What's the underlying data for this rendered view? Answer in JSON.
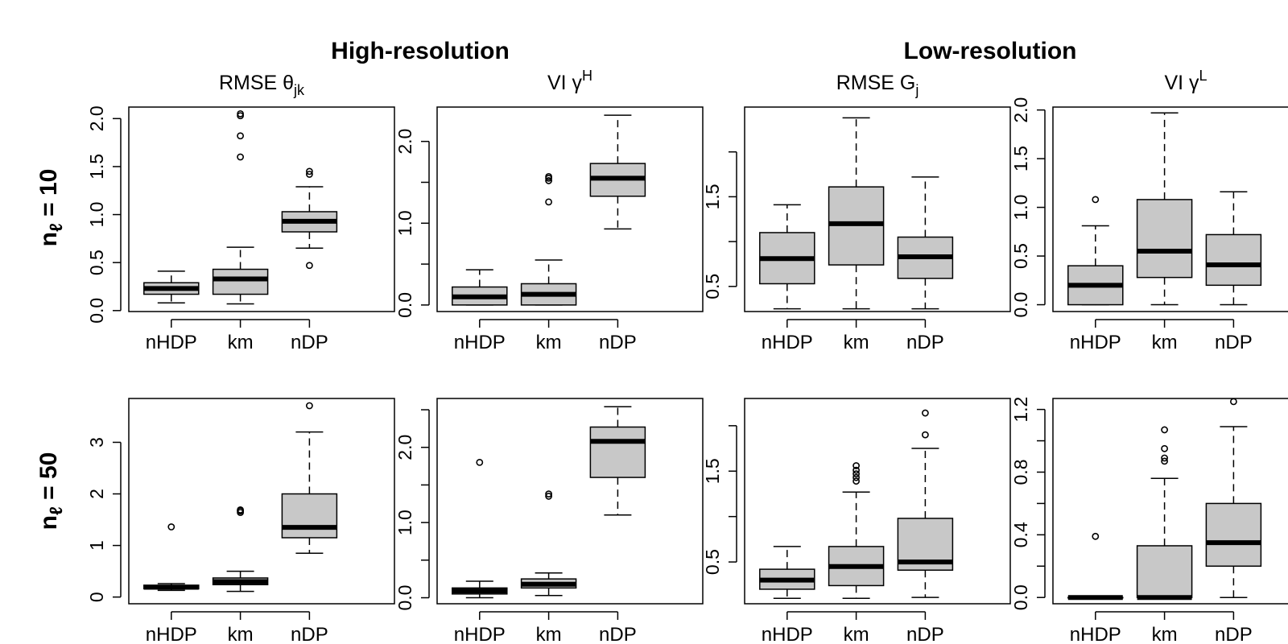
{
  "titles": {
    "group_left": "High-resolution",
    "group_right": "Low-resolution"
  },
  "rows": [
    {
      "label_main": "n",
      "label_sub": "ℓ",
      "label_rest": " = 10"
    },
    {
      "label_main": "n",
      "label_sub": "ℓ",
      "label_rest": " = 50"
    }
  ],
  "chart_data": [
    {
      "type": "box",
      "title_main": "RMSE θ",
      "title_sup": "",
      "title_sub": "jk",
      "categories": [
        "nHDP",
        "km",
        "nDP"
      ],
      "ylim": [
        -0.01,
        2.12
      ],
      "yticks": [
        0.0,
        0.5,
        1.0,
        1.5,
        2.0
      ],
      "ytick_labels": [
        "0.0",
        "0.5",
        "1.0",
        "1.5",
        "2.0"
      ],
      "boxes": [
        {
          "min": 0.08,
          "q1": 0.17,
          "median": 0.23,
          "q3": 0.29,
          "max": 0.41,
          "outliers": []
        },
        {
          "min": 0.07,
          "q1": 0.17,
          "median": 0.33,
          "q3": 0.43,
          "max": 0.66,
          "outliers": [
            1.6,
            1.82,
            2.03,
            2.05
          ]
        },
        {
          "min": 0.65,
          "q1": 0.82,
          "median": 0.93,
          "q3": 1.03,
          "max": 1.29,
          "outliers": [
            0.47,
            1.42,
            1.45
          ]
        }
      ]
    },
    {
      "type": "box",
      "title_main": "VI γ",
      "title_sup": "H",
      "title_sub": "",
      "categories": [
        "nHDP",
        "km",
        "nDP"
      ],
      "ylim": [
        -0.08,
        2.42
      ],
      "yticks": [
        0.0,
        0.5,
        1.0,
        1.5,
        2.0
      ],
      "ytick_labels": [
        "0.0",
        "",
        "1.0",
        "",
        "2.0"
      ],
      "boxes": [
        {
          "min": 0.0,
          "q1": 0.0,
          "median": 0.1,
          "q3": 0.22,
          "max": 0.43,
          "outliers": []
        },
        {
          "min": 0.0,
          "q1": 0.0,
          "median": 0.13,
          "q3": 0.26,
          "max": 0.55,
          "outliers": [
            1.26,
            1.52,
            1.55,
            1.57
          ]
        },
        {
          "min": 0.93,
          "q1": 1.33,
          "median": 1.55,
          "q3": 1.73,
          "max": 2.32,
          "outliers": []
        }
      ]
    },
    {
      "type": "box",
      "title_main": "RMSE G",
      "title_sup": "",
      "title_sub": "j",
      "categories": [
        "nHDP",
        "km",
        "nDP"
      ],
      "ylim": [
        0.22,
        2.5
      ],
      "yticks": [
        0.5,
        1.0,
        1.5,
        2.0
      ],
      "ytick_labels": [
        "0.5",
        "",
        "1.5",
        ""
      ],
      "boxes": [
        {
          "min": 0.25,
          "q1": 0.53,
          "median": 0.81,
          "q3": 1.1,
          "max": 1.41,
          "outliers": []
        },
        {
          "min": 0.25,
          "q1": 0.74,
          "median": 1.2,
          "q3": 1.61,
          "max": 2.38,
          "outliers": []
        },
        {
          "min": 0.25,
          "q1": 0.59,
          "median": 0.83,
          "q3": 1.05,
          "max": 1.72,
          "outliers": []
        }
      ]
    },
    {
      "type": "box",
      "title_main": "VI γ",
      "title_sup": "L",
      "title_sub": "",
      "categories": [
        "nHDP",
        "km",
        "nDP"
      ],
      "ylim": [
        -0.07,
        2.03
      ],
      "yticks": [
        0.0,
        0.5,
        1.0,
        1.5,
        2.0
      ],
      "ytick_labels": [
        "0.0",
        "0.5",
        "1.0",
        "1.5",
        "2.0"
      ],
      "boxes": [
        {
          "min": 0.0,
          "q1": 0.0,
          "median": 0.2,
          "q3": 0.4,
          "max": 0.81,
          "outliers": [
            1.08
          ]
        },
        {
          "min": 0.0,
          "q1": 0.28,
          "median": 0.55,
          "q3": 1.08,
          "max": 1.97,
          "outliers": []
        },
        {
          "min": 0.0,
          "q1": 0.2,
          "median": 0.41,
          "q3": 0.72,
          "max": 1.16,
          "outliers": []
        }
      ]
    },
    {
      "type": "box",
      "title_main": "",
      "title_sup": "",
      "title_sub": "",
      "categories": [
        "nHDP",
        "km",
        "nDP"
      ],
      "ylim": [
        -0.13,
        3.85
      ],
      "yticks": [
        0,
        1,
        2,
        3
      ],
      "ytick_labels": [
        "0",
        "1",
        "2",
        "3"
      ],
      "boxes": [
        {
          "min": 0.13,
          "q1": 0.16,
          "median": 0.19,
          "q3": 0.23,
          "max": 0.26,
          "outliers": [
            1.36
          ]
        },
        {
          "min": 0.11,
          "q1": 0.24,
          "median": 0.3,
          "q3": 0.37,
          "max": 0.5,
          "outliers": [
            1.64,
            1.67,
            1.69
          ]
        },
        {
          "min": 0.85,
          "q1": 1.15,
          "median": 1.35,
          "q3": 2.0,
          "max": 3.2,
          "outliers": [
            3.71
          ]
        }
      ]
    },
    {
      "type": "box",
      "title_main": "",
      "title_sup": "",
      "title_sub": "",
      "categories": [
        "nHDP",
        "km",
        "nDP"
      ],
      "ylim": [
        -0.08,
        2.65
      ],
      "yticks": [
        0.0,
        0.5,
        1.0,
        1.5,
        2.0,
        2.5
      ],
      "ytick_labels": [
        "0.0",
        "",
        "1.0",
        "",
        "2.0",
        ""
      ],
      "boxes": [
        {
          "min": 0.0,
          "q1": 0.05,
          "median": 0.09,
          "q3": 0.13,
          "max": 0.22,
          "outliers": [
            1.8
          ]
        },
        {
          "min": 0.03,
          "q1": 0.13,
          "median": 0.18,
          "q3": 0.25,
          "max": 0.33,
          "outliers": [
            1.35,
            1.38
          ]
        },
        {
          "min": 1.1,
          "q1": 1.6,
          "median": 2.08,
          "q3": 2.27,
          "max": 2.54,
          "outliers": []
        }
      ]
    },
    {
      "type": "box",
      "title_main": "",
      "title_sup": "",
      "title_sub": "",
      "categories": [
        "nHDP",
        "km",
        "nDP"
      ],
      "ylim": [
        0.04,
        2.3
      ],
      "yticks": [
        0.5,
        1.0,
        1.5,
        2.0
      ],
      "ytick_labels": [
        "0.5",
        "",
        "1.5",
        ""
      ],
      "boxes": [
        {
          "min": 0.1,
          "q1": 0.2,
          "median": 0.3,
          "q3": 0.42,
          "max": 0.67,
          "outliers": []
        },
        {
          "min": 0.1,
          "q1": 0.24,
          "median": 0.45,
          "q3": 0.67,
          "max": 1.27,
          "outliers": [
            1.39,
            1.43,
            1.47,
            1.51,
            1.56
          ]
        },
        {
          "min": 0.11,
          "q1": 0.41,
          "median": 0.5,
          "q3": 0.98,
          "max": 1.75,
          "outliers": [
            1.9,
            2.14
          ]
        }
      ]
    },
    {
      "type": "box",
      "title_main": "",
      "title_sup": "",
      "title_sub": "",
      "categories": [
        "nHDP",
        "km",
        "nDP"
      ],
      "ylim": [
        -0.04,
        1.27
      ],
      "yticks": [
        0.0,
        0.2,
        0.4,
        0.6,
        0.8,
        1.0,
        1.2
      ],
      "ytick_labels": [
        "0.0",
        "",
        "0.4",
        "",
        "0.8",
        "",
        "1.2"
      ],
      "boxes": [
        {
          "min": 0.0,
          "q1": 0.0,
          "median": 0.0,
          "q3": 0.0,
          "max": 0.0,
          "outliers": [
            0.39
          ]
        },
        {
          "min": 0.0,
          "q1": 0.0,
          "median": 0.0,
          "q3": 0.33,
          "max": 0.76,
          "outliers": [
            0.87,
            0.89,
            0.95,
            1.07
          ]
        },
        {
          "min": 0.0,
          "q1": 0.2,
          "median": 0.35,
          "q3": 0.6,
          "max": 1.09,
          "outliers": [
            1.25
          ]
        }
      ]
    }
  ]
}
